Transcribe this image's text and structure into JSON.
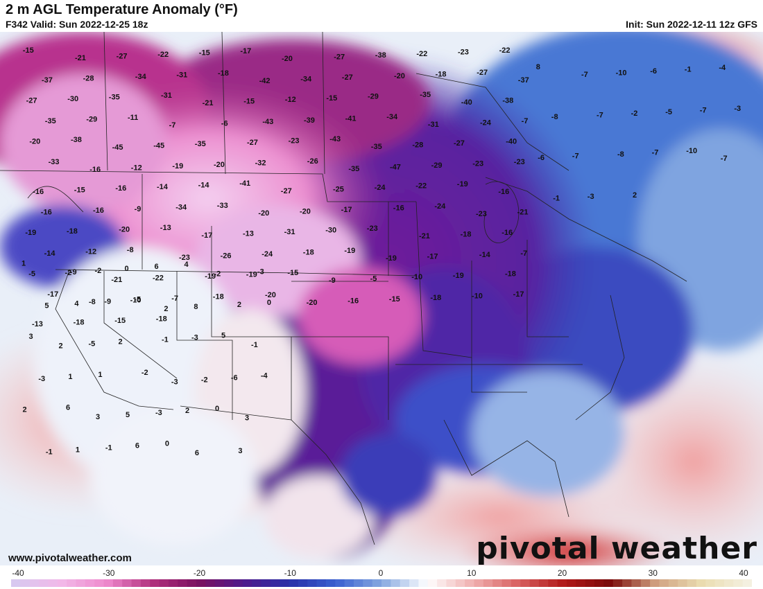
{
  "header": {
    "title": "2 m AGL Temperature Anomaly (°F)",
    "valid": "F342 Valid: Sun 2022-12-25 18z",
    "init": "Init: Sun 2022-12-11 12z GFS"
  },
  "footer": {
    "url": "www.pivotalweather.com",
    "brand": "pivotal weather"
  },
  "colorbar": {
    "min": -40,
    "max": 40,
    "tick_labels": [
      "-40",
      "-30",
      "-20",
      "-10",
      "0",
      "10",
      "20",
      "30",
      "40"
    ],
    "stops": [
      "#d8c8f0",
      "#f2b8e8",
      "#ee88cc",
      "#b0307c",
      "#7a1060",
      "#4e1a8c",
      "#2a30a8",
      "#3a60d0",
      "#86a8e0",
      "#ffffff",
      "#f0b0b0",
      "#d86060",
      "#b01818",
      "#7a0a0a",
      "#d0a080",
      "#eadcb0",
      "#f4f0e0"
    ]
  },
  "anomaly_values": [
    "-15",
    "-21",
    "-27",
    "-22",
    "-15",
    "-17",
    "-20",
    "-27",
    "-38",
    "-22",
    "-23",
    "-22",
    "-37",
    "-28",
    "-34",
    "-31",
    "-18",
    "-42",
    "-34",
    "-27",
    "-20",
    "-18",
    "-27",
    "-37",
    "-27",
    "-30",
    "-35",
    "-31",
    "-21",
    "-15",
    "-12",
    "-15",
    "-29",
    "-35",
    "-40",
    "-38",
    "-35",
    "-29",
    "-11",
    "-7",
    "-6",
    "-43",
    "-39",
    "-41",
    "-34",
    "-31",
    "-24",
    "-7",
    "-20",
    "-38",
    "-45",
    "-45",
    "-35",
    "-27",
    "-23",
    "-43",
    "-35",
    "-28",
    "-27",
    "-40",
    "-33",
    "-16",
    "-12",
    "-19",
    "-20",
    "-32",
    "-26",
    "-35",
    "-47",
    "-29",
    "-23",
    "-23",
    "-16",
    "-15",
    "-16",
    "-14",
    "-14",
    "-41",
    "-27",
    "-25",
    "-24",
    "-22",
    "-19",
    "-16",
    "-16",
    "-16",
    "-9",
    "-34",
    "-33",
    "-20",
    "-20",
    "-17",
    "-16",
    "-24",
    "-23",
    "-21",
    "-19",
    "-18",
    "-20",
    "-13",
    "-17",
    "-13",
    "-31",
    "-30",
    "-23",
    "-21",
    "-18",
    "-16",
    "-14",
    "-12",
    "-8",
    "-23",
    "-26",
    "-24",
    "-18",
    "-19",
    "-19",
    "-17",
    "-14",
    "-7",
    "-5",
    "-9",
    "-21",
    "-22",
    "-19",
    "-19",
    "-15",
    "-9",
    "-5",
    "-10",
    "-19",
    "-18",
    "-17",
    "-8",
    "-10",
    "-7",
    "-18",
    "-20",
    "-20",
    "-16",
    "-15",
    "-18",
    "-10",
    "-17",
    "-13",
    "-18",
    "-15",
    "-18"
  ],
  "labels_west": [
    "1",
    "-2",
    "-2",
    "0",
    "6",
    "4",
    "-2",
    "-3",
    "5",
    "4",
    "-9",
    "-5",
    "2",
    "8",
    "2",
    "0",
    "3",
    "2",
    "-5",
    "2",
    "-1",
    "-3",
    "5",
    "-1",
    "-3",
    "1",
    "1",
    "-2",
    "-3",
    "-2",
    "-6",
    "-4",
    "2",
    "6",
    "3",
    "5",
    "-3",
    "2",
    "0",
    "3",
    "-1",
    "1",
    "-1",
    "6",
    "0",
    "6",
    "3"
  ],
  "labels_east_canada": [
    "8",
    "-7",
    "-10",
    "-6",
    "-1",
    "-4",
    "-8",
    "-7",
    "-2",
    "-5",
    "-7",
    "-3",
    "-6",
    "-7",
    "-8",
    "-7",
    "-10",
    "-7",
    "-1",
    "-3",
    "2"
  ]
}
